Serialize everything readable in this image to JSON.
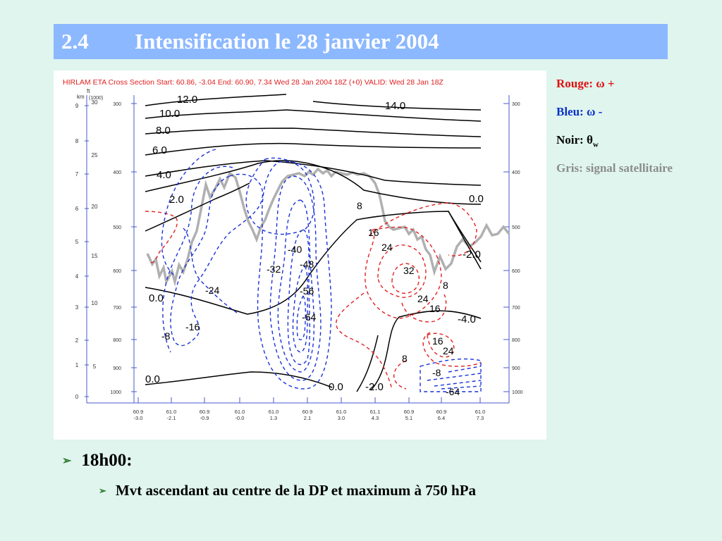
{
  "header": {
    "number": "2.4",
    "title": "Intensification le 28 janvier 2004"
  },
  "figure": {
    "caption": "HIRLAM ETA Cross Section Start: 60.86, -3.04 End: 60.90, 7.34 Wed 28 Jan 2004 18Z (+0) VALID: Wed 28 Jan 18Z",
    "left_axis_km_label": "km",
    "left_axis_ft_label": "ft",
    "left_axis_ft_unit": "(1000)",
    "km_ticks": [
      "9",
      "8",
      "7",
      "6",
      "5",
      "4",
      "3",
      "2",
      "1",
      "0"
    ],
    "ft_ticks": [
      "30",
      "25",
      "20",
      "15",
      "10",
      "5"
    ],
    "pressure_ticks": [
      "300",
      "400",
      "500",
      "600",
      "700",
      "800",
      "900",
      "1000"
    ],
    "x_ticks": [
      {
        "lat": "60.9",
        "lon": "-3.0"
      },
      {
        "lat": "61.0",
        "lon": "-2.1"
      },
      {
        "lat": "60.9",
        "lon": "-0.9"
      },
      {
        "lat": "61.0",
        "lon": "-0.0"
      },
      {
        "lat": "61.0",
        "lon": "1.3"
      },
      {
        "lat": "60.9",
        "lon": "2.1"
      },
      {
        "lat": "61.0",
        "lon": "3.0"
      },
      {
        "lat": "61.1",
        "lon": "4.3"
      },
      {
        "lat": "60.9",
        "lon": "5.1"
      },
      {
        "lat": "60.9",
        "lon": "6.4"
      },
      {
        "lat": "61.0",
        "lon": "7.3"
      }
    ],
    "theta_labels": [
      "12.0",
      "14.0",
      "10.0",
      "8.0",
      "6.0",
      "4.0",
      "2.0",
      "0.0",
      "-2.0",
      "0.0",
      "-4.0",
      "0.0",
      "0.0",
      "-2.0"
    ],
    "omega_pos_labels": [
      "8",
      "16",
      "24",
      "32",
      "8",
      "24",
      "16",
      "16",
      "24",
      "8"
    ],
    "omega_neg_labels": [
      "-40",
      "-48",
      "-32",
      "-56",
      "-24",
      "-64",
      "-16",
      "-8",
      "-8",
      "-64"
    ]
  },
  "legend": {
    "red": {
      "text": "Rouge: ",
      "symbol": "ω",
      "sign": " +",
      "color": "#e01010"
    },
    "blue": {
      "text": "Bleu: ",
      "symbol": "ω",
      "sign": " -",
      "color": "#0a30c8"
    },
    "black": {
      "text": "Noir: ",
      "symbol": "θ",
      "sub": "w",
      "color": "#000000"
    },
    "grey": {
      "text": "Gris: signal satellitaire",
      "color": "#8c8c8c"
    }
  },
  "bullets": [
    {
      "text": "18h00:"
    },
    {
      "text": "Mvt ascendant au centre de la DP et maximum à 750 hPa"
    }
  ],
  "colors": {
    "background": "#dff5ee",
    "title_bar": "#8cb8ff",
    "bullet_arrow": "#2d7a2d",
    "axis": "#4a5acb"
  }
}
